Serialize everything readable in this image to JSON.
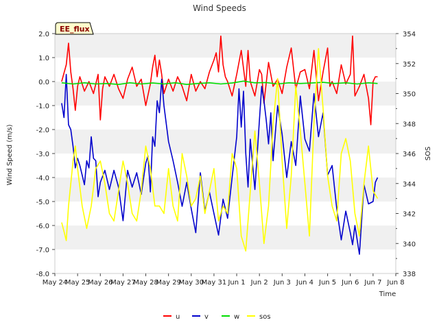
{
  "chart_data": {
    "type": "line",
    "title": "Wind Speeds",
    "xlabel": "Time",
    "ylabel": "Wind Speed (m/s)",
    "y2label": "SOS",
    "badge": "EE_flux",
    "xlim": [
      0,
      15
    ],
    "ylim": [
      -8,
      2
    ],
    "y2lim": [
      338,
      354
    ],
    "grid": "horizontal bands",
    "legend_position": "bottom-center",
    "x_ticks": [
      {
        "v": 0,
        "label": "May 24"
      },
      {
        "v": 1,
        "label": "May 25"
      },
      {
        "v": 2,
        "label": "May 26"
      },
      {
        "v": 3,
        "label": "May 27"
      },
      {
        "v": 4,
        "label": "May 28"
      },
      {
        "v": 5,
        "label": "May 29"
      },
      {
        "v": 6,
        "label": "May 30"
      },
      {
        "v": 7,
        "label": "May 31"
      },
      {
        "v": 8,
        "label": "Jun 1"
      },
      {
        "v": 9,
        "label": "Jun 2"
      },
      {
        "v": 10,
        "label": "Jun 3"
      },
      {
        "v": 11,
        "label": "Jun 4"
      },
      {
        "v": 12,
        "label": "Jun 5"
      },
      {
        "v": 13,
        "label": "Jun 6"
      },
      {
        "v": 14,
        "label": "Jun 7"
      },
      {
        "v": 15,
        "label": "Jun 8"
      }
    ],
    "y_ticks": [
      {
        "v": 2,
        "label": "2.0"
      },
      {
        "v": 1,
        "label": "1.0"
      },
      {
        "v": 0,
        "label": "0.0"
      },
      {
        "v": -1,
        "label": "-1.0"
      },
      {
        "v": -2,
        "label": "-2.0"
      },
      {
        "v": -3,
        "label": "-3.0"
      },
      {
        "v": -4,
        "label": "-4.0"
      },
      {
        "v": -5,
        "label": "-5.0"
      },
      {
        "v": -6,
        "label": "-6.0"
      },
      {
        "v": -7,
        "label": "-7.0"
      },
      {
        "v": -8,
        "label": "-8.0"
      }
    ],
    "y2_ticks": [
      {
        "v": 354,
        "label": "354"
      },
      {
        "v": 352,
        "label": "352"
      },
      {
        "v": 350,
        "label": "350"
      },
      {
        "v": 348,
        "label": "348"
      },
      {
        "v": 346,
        "label": "346"
      },
      {
        "v": 344,
        "label": "344"
      },
      {
        "v": 342,
        "label": "342"
      },
      {
        "v": 340,
        "label": "340"
      },
      {
        "v": 338,
        "label": "338"
      }
    ],
    "series": [
      {
        "name": "u",
        "color": "#ff0000",
        "axis": "left",
        "x": [
          0.3,
          0.5,
          0.6,
          0.7,
          0.8,
          0.9,
          1.0,
          1.1,
          1.3,
          1.5,
          1.7,
          1.9,
          2.0,
          2.1,
          2.2,
          2.4,
          2.6,
          2.8,
          3.0,
          3.2,
          3.4,
          3.6,
          3.8,
          4.0,
          4.2,
          4.3,
          4.4,
          4.5,
          4.6,
          4.7,
          4.8,
          5.0,
          5.2,
          5.4,
          5.6,
          5.8,
          6.0,
          6.2,
          6.4,
          6.6,
          6.8,
          7.0,
          7.1,
          7.2,
          7.3,
          7.4,
          7.5,
          7.6,
          7.8,
          8.0,
          8.2,
          8.4,
          8.5,
          8.6,
          8.8,
          9.0,
          9.1,
          9.2,
          9.4,
          9.6,
          9.8,
          10.0,
          10.2,
          10.4,
          10.6,
          10.8,
          11.0,
          11.2,
          11.4,
          11.6,
          11.8,
          12.0,
          12.1,
          12.2,
          12.4,
          12.6,
          12.8,
          13.0,
          13.1,
          13.2,
          13.4,
          13.6,
          13.8,
          13.9,
          14.0,
          14.1,
          14.2
        ],
        "values": [
          0.0,
          0.7,
          1.6,
          0.4,
          -0.3,
          -1.2,
          -0.2,
          0.2,
          -0.4,
          0.0,
          -0.5,
          0.3,
          -1.6,
          -0.3,
          0.2,
          -0.2,
          0.3,
          -0.3,
          -0.7,
          0.1,
          0.6,
          -0.2,
          0.1,
          -1.0,
          -0.1,
          0.6,
          1.1,
          0.2,
          0.9,
          0.3,
          -0.5,
          0.1,
          -0.4,
          0.2,
          -0.2,
          -0.8,
          0.3,
          -0.4,
          0.0,
          -0.3,
          0.4,
          0.9,
          1.2,
          0.4,
          1.9,
          0.7,
          0.2,
          0.0,
          -0.6,
          0.3,
          1.3,
          -0.2,
          1.3,
          0.0,
          -0.6,
          0.5,
          0.3,
          -0.9,
          0.8,
          -0.2,
          0.1,
          -0.5,
          0.6,
          1.4,
          -0.3,
          0.4,
          0.5,
          -0.3,
          1.3,
          -0.8,
          0.4,
          1.4,
          -0.2,
          0.0,
          -0.5,
          0.7,
          -0.1,
          0.3,
          1.9,
          -0.6,
          -0.2,
          0.3,
          -0.7,
          -1.8,
          0.0,
          0.2,
          0.2
        ]
      },
      {
        "name": "v",
        "color": "#0000cc",
        "axis": "left",
        "x": [
          0.3,
          0.4,
          0.5,
          0.6,
          0.7,
          0.8,
          0.9,
          1.0,
          1.1,
          1.2,
          1.3,
          1.4,
          1.5,
          1.6,
          1.7,
          1.8,
          1.9,
          2.0,
          2.2,
          2.4,
          2.6,
          2.8,
          3.0,
          3.2,
          3.4,
          3.6,
          3.8,
          4.0,
          4.1,
          4.2,
          4.3,
          4.4,
          4.5,
          4.6,
          4.7,
          4.8,
          5.0,
          5.2,
          5.4,
          5.6,
          5.8,
          6.0,
          6.2,
          6.4,
          6.6,
          6.8,
          7.0,
          7.2,
          7.4,
          7.6,
          7.8,
          8.0,
          8.1,
          8.2,
          8.3,
          8.4,
          8.5,
          8.6,
          8.8,
          9.0,
          9.1,
          9.2,
          9.3,
          9.4,
          9.5,
          9.6,
          9.8,
          10.0,
          10.2,
          10.4,
          10.6,
          10.8,
          11.0,
          11.2,
          11.4,
          11.6,
          11.8,
          12.0,
          12.2,
          12.4,
          12.6,
          12.8,
          13.0,
          13.1,
          13.2,
          13.4,
          13.6,
          13.8,
          14.0,
          14.1,
          14.2
        ],
        "values": [
          -0.9,
          -1.5,
          0.3,
          -1.8,
          -2.0,
          -2.7,
          -3.6,
          -3.2,
          -3.5,
          -3.9,
          -4.3,
          -3.3,
          -3.6,
          -2.3,
          -3.2,
          -3.3,
          -4.8,
          -4.2,
          -3.7,
          -4.5,
          -3.7,
          -4.4,
          -5.8,
          -3.7,
          -4.4,
          -3.8,
          -4.7,
          -3.4,
          -3.1,
          -4.6,
          -2.3,
          -2.7,
          -0.8,
          -1.3,
          0.1,
          -1.0,
          -2.5,
          -3.3,
          -4.2,
          -5.2,
          -4.2,
          -5.3,
          -6.3,
          -3.8,
          -5.4,
          -4.6,
          -5.5,
          -6.4,
          -4.9,
          -5.7,
          -4.0,
          -2.3,
          -0.3,
          -1.9,
          -0.4,
          -3.0,
          -4.4,
          -2.4,
          -4.5,
          -1.6,
          -0.2,
          -0.8,
          -1.6,
          -2.6,
          -1.3,
          -3.3,
          -1.0,
          -2.2,
          -4.0,
          -2.5,
          -3.5,
          -0.6,
          -2.4,
          -2.9,
          -0.5,
          -2.3,
          -1.3,
          -3.9,
          -3.5,
          -5.3,
          -6.6,
          -5.4,
          -6.3,
          -6.8,
          -6.0,
          -7.2,
          -4.3,
          -5.1,
          -5.0,
          -4.2,
          -4.0
        ]
      },
      {
        "name": "w",
        "color": "#00dd00",
        "axis": "left",
        "x": [
          0.3,
          0.8,
          1.3,
          1.8,
          2.3,
          2.8,
          3.3,
          3.8,
          4.3,
          4.8,
          5.3,
          5.8,
          6.3,
          6.8,
          7.3,
          7.8,
          8.3,
          8.8,
          9.3,
          9.8,
          10.3,
          10.8,
          11.3,
          11.8,
          12.3,
          12.8,
          13.3,
          13.8,
          14.2
        ],
        "values": [
          -0.05,
          -0.1,
          -0.05,
          -0.1,
          -0.08,
          -0.12,
          -0.05,
          -0.1,
          -0.06,
          -0.1,
          -0.05,
          -0.12,
          -0.08,
          -0.05,
          -0.1,
          -0.06,
          0.02,
          -0.05,
          -0.04,
          -0.1,
          -0.05,
          -0.08,
          -0.06,
          -0.03,
          -0.08,
          -0.05,
          -0.1,
          -0.05,
          -0.08
        ]
      },
      {
        "name": "sos",
        "color": "#ffff00",
        "axis": "right",
        "x": [
          0.3,
          0.4,
          0.5,
          0.6,
          0.7,
          0.8,
          0.9,
          1.0,
          1.2,
          1.4,
          1.6,
          1.8,
          2.0,
          2.2,
          2.4,
          2.6,
          2.8,
          3.0,
          3.2,
          3.4,
          3.6,
          3.8,
          4.0,
          4.2,
          4.4,
          4.6,
          4.8,
          5.0,
          5.2,
          5.4,
          5.6,
          5.8,
          6.0,
          6.2,
          6.4,
          6.6,
          6.8,
          7.0,
          7.2,
          7.4,
          7.6,
          7.8,
          8.0,
          8.2,
          8.4,
          8.6,
          8.8,
          9.0,
          9.2,
          9.4,
          9.6,
          9.8,
          10.0,
          10.2,
          10.4,
          10.6,
          10.8,
          11.0,
          11.2,
          11.4,
          11.6,
          11.8,
          12.0,
          12.2,
          12.4,
          12.6,
          12.8,
          13.0,
          13.2,
          13.4,
          13.6,
          13.8,
          14.0,
          14.2
        ],
        "values": [
          341.4,
          340.8,
          340.2,
          342.5,
          344.0,
          345.5,
          346.5,
          345.0,
          342.5,
          341.0,
          342.5,
          345.0,
          345.5,
          344.0,
          342.0,
          341.5,
          343.5,
          345.5,
          344.0,
          342.0,
          341.5,
          343.5,
          346.5,
          345.0,
          342.5,
          342.5,
          342.0,
          345.0,
          342.5,
          341.5,
          346.0,
          344.5,
          342.5,
          343.0,
          344.5,
          342.0,
          343.5,
          345.0,
          341.5,
          342.5,
          342.0,
          346.0,
          345.0,
          340.5,
          339.5,
          343.5,
          347.5,
          344.0,
          340.0,
          342.5,
          348.0,
          351.0,
          345.5,
          341.0,
          344.5,
          350.5,
          347.5,
          344.0,
          340.5,
          348.0,
          353.0,
          349.0,
          344.5,
          342.5,
          341.5,
          346.0,
          347.0,
          345.5,
          342.0,
          340.5,
          344.0,
          346.5,
          343.5,
          343.0
        ]
      }
    ]
  }
}
